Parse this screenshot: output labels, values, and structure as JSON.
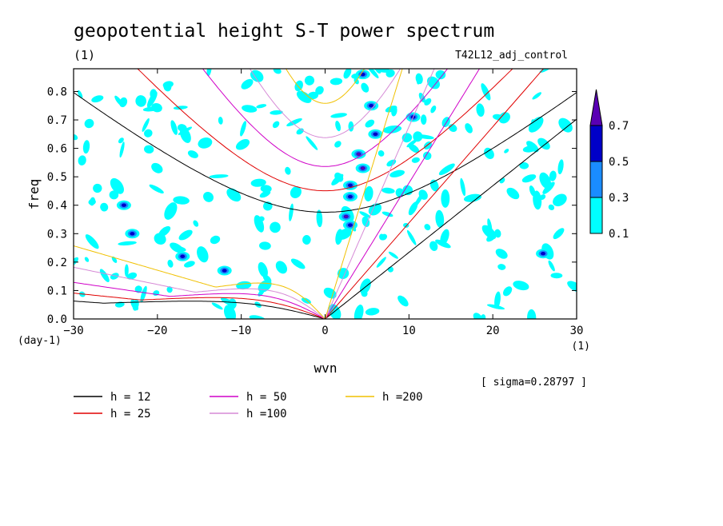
{
  "chart_data": {
    "type": "heatmap",
    "title": "geopotential height S-T power spectrum",
    "subtitle": "(1)",
    "run_label": "T42L12_adj_control",
    "xlabel": "wvn",
    "x_unit": "(1)",
    "ylabel": "freq",
    "y_unit": "(day-1)",
    "xlim": [
      -30,
      30
    ],
    "ylim": [
      0,
      0.88
    ],
    "x_ticks": [
      -30,
      -20,
      -10,
      0,
      10,
      20,
      30
    ],
    "y_ticks": [
      0.0,
      0.1,
      0.2,
      0.3,
      0.4,
      0.5,
      0.6,
      0.7,
      0.8
    ],
    "sigma_note": "[ sigma=0.28797 ]",
    "colorbar": {
      "levels": [
        "0.1",
        "0.3",
        "0.5",
        "0.7"
      ],
      "colors": [
        "#00ffff",
        "#1a8cff",
        "#0000c8",
        "#5a00b4"
      ]
    },
    "series": [
      {
        "name": "h = 12",
        "h": 12,
        "color": "#000000"
      },
      {
        "name": "h = 25",
        "h": 25,
        "color": "#e00000"
      },
      {
        "name": "h = 50",
        "h": 50,
        "color": "#d000c8"
      },
      {
        "name": "h =100",
        "h": 100,
        "color": "#d68ad6"
      },
      {
        "name": "h =200",
        "h": 200,
        "color": "#f0c000"
      }
    ]
  }
}
